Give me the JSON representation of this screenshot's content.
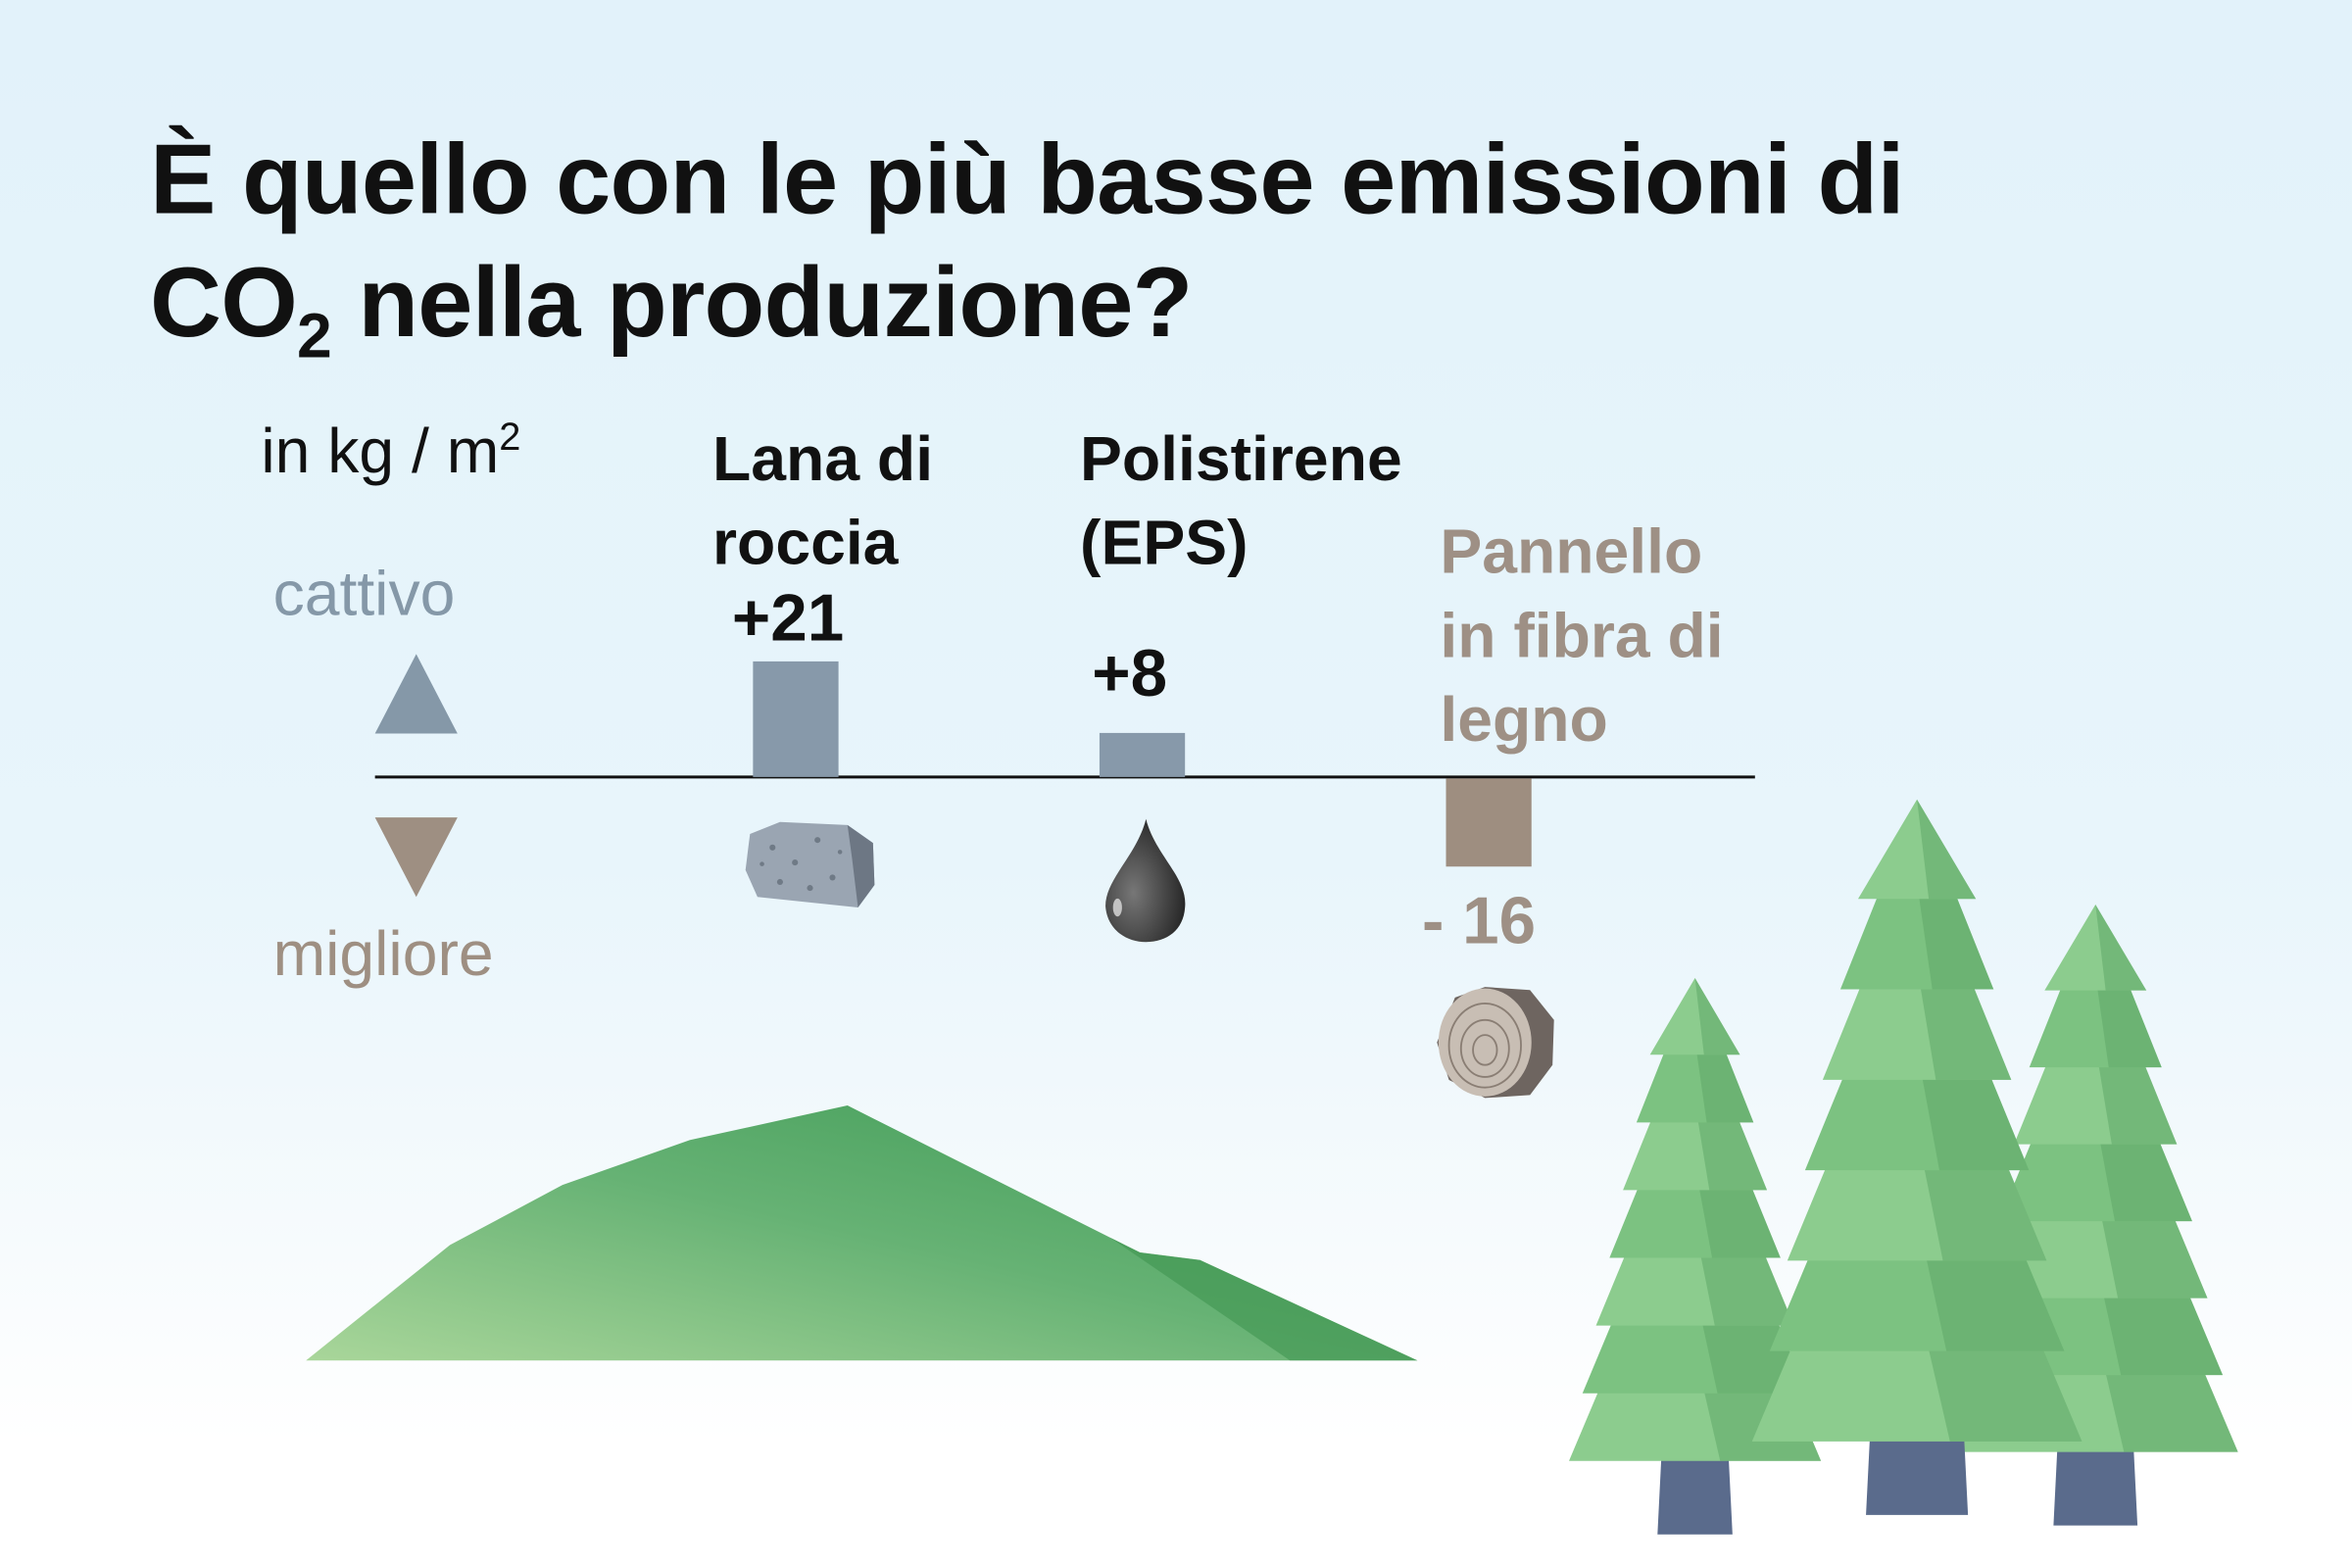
{
  "title": {
    "line1": "È quello con le più basse emissioni di",
    "line2_pre": "CO",
    "line2_sub": "2",
    "line2_post": " nella produzione?"
  },
  "unit": {
    "text": "in kg / m",
    "sup": "2"
  },
  "scale": {
    "bad": "cattivo",
    "better": "migliore",
    "bad_color": "#8598a8",
    "better_color": "#9e8f82"
  },
  "chart_data": {
    "type": "bar",
    "categories": [
      "Lana di roccia",
      "Polistirene (EPS)",
      "Pannello in fibra di legno"
    ],
    "values": [
      21,
      8,
      -16
    ],
    "value_labels": [
      "+21",
      "+8",
      "- 16"
    ],
    "category_lines": [
      [
        "Lana di",
        "roccia"
      ],
      [
        "Polistirene",
        "(EPS)"
      ],
      [
        "Pannello",
        "in fibra di",
        "legno"
      ]
    ],
    "colors": [
      "#8799aa",
      "#8799aa",
      "#9e8e80"
    ],
    "label_colors": [
      "#111111",
      "#111111",
      "#9e9085"
    ],
    "icons": [
      "rock-icon",
      "oil-drop-icon",
      "wood-log-icon"
    ],
    "baseline": 0
  }
}
